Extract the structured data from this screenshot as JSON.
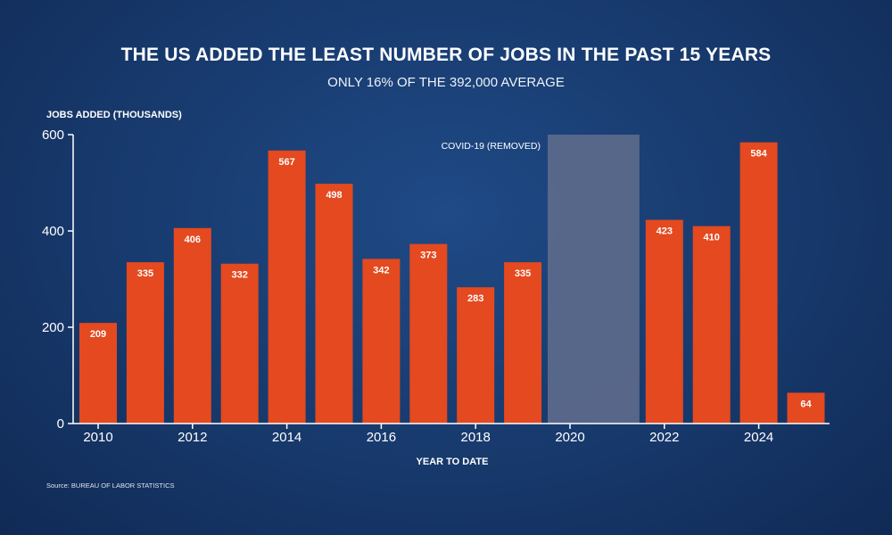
{
  "chart_data": {
    "type": "bar",
    "title": "THE US ADDED THE LEAST NUMBER OF JOBS IN THE PAST 15 YEARS",
    "subtitle": "ONLY 16% OF THE 392,000 AVERAGE",
    "ylabel": "JOBS ADDED (THOUSANDS)",
    "xlabel": "YEAR TO DATE",
    "source": "Source: BUREAU OF LABOR STATISTICS",
    "ylim": [
      0,
      600
    ],
    "yticks": [
      0,
      200,
      400,
      600
    ],
    "xticks": [
      "2010",
      "2012",
      "2014",
      "2016",
      "2018",
      "2020",
      "2022",
      "2024"
    ],
    "categories": [
      "2010",
      "2011",
      "2012",
      "2013",
      "2014",
      "2015",
      "2016",
      "2017",
      "2018",
      "2019",
      "2020",
      "2021",
      "2022",
      "2023",
      "2024",
      "2025"
    ],
    "values": [
      209,
      335,
      406,
      332,
      567,
      498,
      342,
      373,
      283,
      335,
      null,
      null,
      423,
      410,
      584,
      64
    ],
    "labels": [
      "209",
      "335",
      "406",
      "332",
      "567",
      "498",
      "342",
      "373",
      "283",
      "335",
      "",
      "",
      "423",
      "410",
      "584",
      "64"
    ],
    "covid_band": {
      "label": "COVID-19 (REMOVED)",
      "from_category": "2020",
      "to_category": "2021",
      "value": 600
    },
    "colors": {
      "bar": "#e4491f",
      "covid": "#5e6c8c",
      "axis": "#ffffff"
    }
  }
}
